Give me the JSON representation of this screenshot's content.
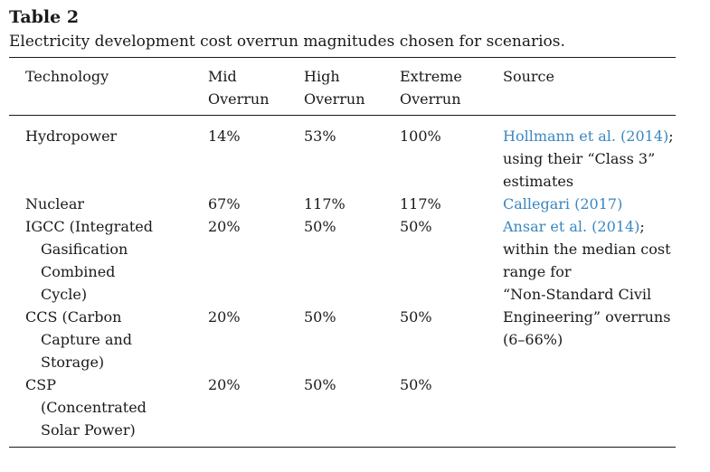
{
  "table": {
    "label": "Table 2",
    "caption": "Electricity development cost overrun magnitudes chosen for scenarios.",
    "headers": [
      {
        "lines": [
          "Technology"
        ]
      },
      {
        "lines": [
          "Mid",
          "Overrun"
        ]
      },
      {
        "lines": [
          "High",
          "Overrun"
        ]
      },
      {
        "lines": [
          "Extreme",
          "Overrun"
        ]
      },
      {
        "lines": [
          "Source"
        ]
      }
    ],
    "rows": [
      {
        "technology": [
          "Hydropower"
        ],
        "mid": "14%",
        "high": "53%",
        "extreme": "100%",
        "source_link": "Hollmann et al. (2014)",
        "source_text": [
          "; ",
          "using their “Class 3”",
          "estimates"
        ]
      },
      {
        "technology": [
          "Nuclear"
        ],
        "mid": "67%",
        "high": "117%",
        "extreme": "117%",
        "source_link": "Callegari (2017)",
        "source_text": []
      },
      {
        "technology": [
          "IGCC (Integrated",
          "Gasification",
          "Combined",
          "Cycle)"
        ],
        "mid": "20%",
        "high": "50%",
        "extreme": "50%",
        "source_link": "Ansar et al. (2014)",
        "source_text": [
          ";",
          "within the median cost",
          "range for",
          "“Non-Standard Civil",
          "Engineering” overruns",
          "(6–66%)"
        ]
      },
      {
        "technology": [
          "CCS (Carbon",
          "Capture and",
          "Storage)"
        ],
        "mid": "20%",
        "high": "50%",
        "extreme": "50%"
      },
      {
        "technology": [
          "CSP",
          "(Concentrated",
          "Solar Power)"
        ],
        "mid": "20%",
        "high": "50%",
        "extreme": "50%"
      }
    ],
    "colors": {
      "text": "#1a1a1a",
      "link": "#3a87c1"
    }
  }
}
